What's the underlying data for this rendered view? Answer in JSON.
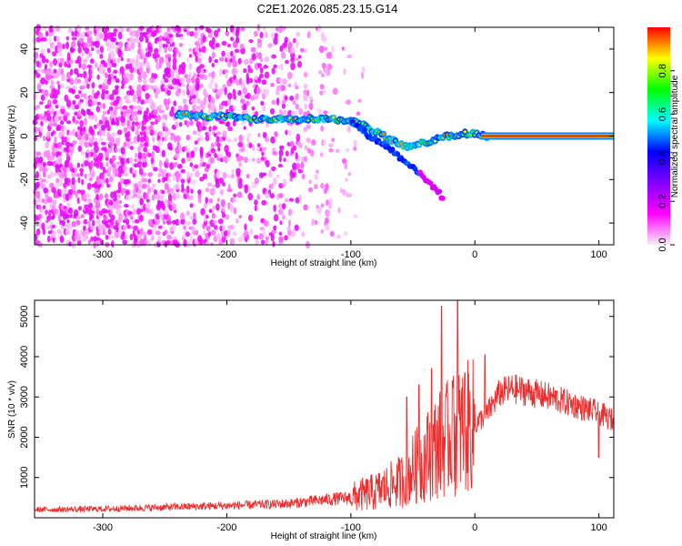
{
  "title": "C2E1.2026.085.23.15.G14",
  "chart_data": [
    {
      "type": "heatmap",
      "xlabel": "Height of straight line (km)",
      "ylabel": "Frequency (Hz)",
      "xlim": [
        -355,
        112
      ],
      "ylim": [
        -50,
        50
      ],
      "xticks": [
        -300,
        -200,
        -100,
        0,
        100
      ],
      "yticks": [
        -40,
        -20,
        0,
        20,
        40
      ],
      "colorbar": {
        "label": "Normalized spectral amplitude",
        "range": [
          0.0,
          1.0
        ],
        "ticks": [
          0.0,
          0.2,
          0.4,
          0.6,
          0.8
        ],
        "colormap": [
          "#f8f0f8",
          "#ff00ff",
          "#8000ff",
          "#0000ff",
          "#00ffff",
          "#00ff00",
          "#ffff00",
          "#ff0000"
        ]
      },
      "ridge": {
        "x": [
          -240,
          -220,
          -200,
          -180,
          -160,
          -140,
          -120,
          -100,
          -90,
          -80,
          -70,
          -60,
          -50,
          -40,
          -30,
          -20,
          -10,
          0,
          10,
          50,
          112
        ],
        "y": [
          10,
          9,
          9,
          8,
          8,
          8,
          8,
          7,
          5,
          2,
          -1,
          -4,
          -5,
          -3,
          -1,
          0,
          1,
          1,
          0,
          0,
          0
        ]
      },
      "branch": {
        "x": [
          -100,
          -85,
          -70,
          -60,
          -50,
          -40,
          -30,
          -25
        ],
        "y": [
          7,
          0,
          -5,
          -10,
          -14,
          -20,
          -25,
          -30
        ]
      }
    },
    {
      "type": "line",
      "xlabel": "Height of straight line (km)",
      "ylabel": "SNR (10 * v/v)",
      "xlim": [
        -355,
        112
      ],
      "ylim": [
        0,
        5400
      ],
      "xticks": [
        -300,
        -200,
        -100,
        0,
        100
      ],
      "yticks": [
        1000,
        2000,
        3000,
        4000,
        5000
      ],
      "color": "#e83030",
      "envelope": {
        "x": [
          -355,
          -300,
          -250,
          -200,
          -150,
          -120,
          -100,
          -80,
          -60,
          -50,
          -40,
          -30,
          -20,
          -10,
          0,
          10,
          20,
          30,
          40,
          60,
          80,
          100,
          112
        ],
        "y": [
          200,
          220,
          260,
          300,
          350,
          450,
          500,
          650,
          900,
          1200,
          1500,
          1800,
          2000,
          2200,
          2300,
          2600,
          3100,
          3200,
          3150,
          3000,
          2800,
          2600,
          2400
        ]
      },
      "spikes": [
        {
          "x": -27,
          "y": 5250
        },
        {
          "x": -14,
          "y": 5400
        },
        {
          "x": -55,
          "y": 3000
        },
        {
          "x": -45,
          "y": 3300
        },
        {
          "x": -35,
          "y": 3700
        },
        {
          "x": -18,
          "y": 3400
        },
        {
          "x": 8,
          "y": 4050
        },
        {
          "x": -8,
          "y": 3600
        },
        {
          "x": 100,
          "y": 1500
        }
      ]
    }
  ]
}
